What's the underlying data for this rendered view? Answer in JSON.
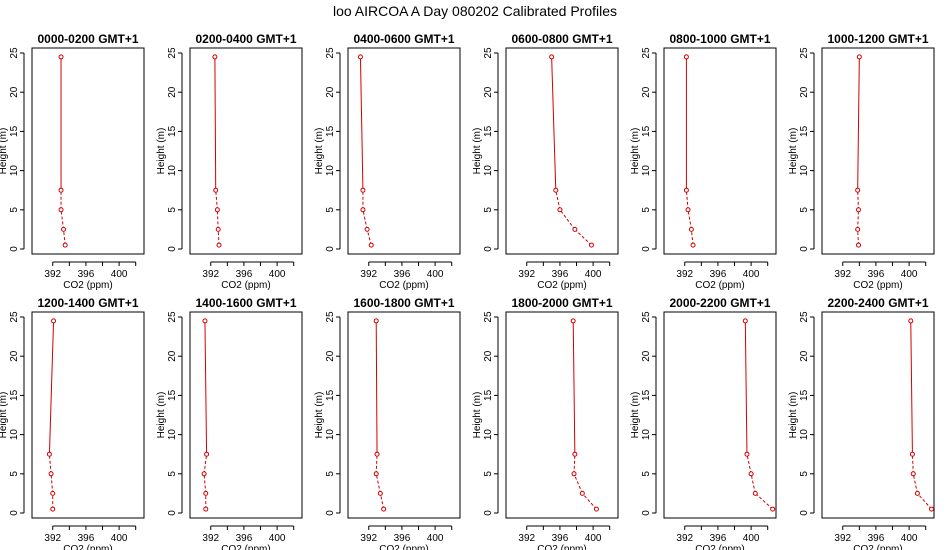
{
  "title": "loo AIRCOA A  Day 080202  Calibrated Profiles",
  "colors": {
    "series": "#d40000",
    "axis": "#000000",
    "background": "#ffffff"
  },
  "chart_data": {
    "type": "line",
    "xlabel": "CO2 (ppm)",
    "ylabel": "Height (m)",
    "xlim": [
      389.5,
      403
    ],
    "ylim": [
      0,
      25
    ],
    "xticks": [
      392,
      396,
      400
    ],
    "yticks": [
      0,
      5,
      10,
      15,
      20,
      25
    ],
    "heights": [
      0.5,
      2.5,
      5,
      7.5,
      24.5
    ],
    "panels": [
      {
        "title": "0000-0200 GMT+1",
        "co2": [
          393.5,
          393.3,
          393.0,
          393.0,
          393.0
        ]
      },
      {
        "title": "0200-0400 GMT+1",
        "co2": [
          393.0,
          392.9,
          392.8,
          392.6,
          392.5
        ]
      },
      {
        "title": "0400-0600 GMT+1",
        "co2": [
          392.3,
          391.8,
          391.3,
          391.3,
          391.0
        ]
      },
      {
        "title": "0600-0800 GMT+1",
        "co2": [
          399.8,
          397.8,
          396.0,
          395.5,
          395.0
        ]
      },
      {
        "title": "0800-1000 GMT+1",
        "co2": [
          393.0,
          392.8,
          392.4,
          392.2,
          392.2
        ]
      },
      {
        "title": "1000-1200 GMT+1",
        "co2": [
          393.9,
          393.8,
          393.9,
          393.8,
          394.0
        ]
      },
      {
        "title": "1200-1400 GMT+1",
        "co2": [
          392.0,
          392.0,
          391.8,
          391.6,
          392.1
        ]
      },
      {
        "title": "1400-1600 GMT+1",
        "co2": [
          391.4,
          391.4,
          391.2,
          391.5,
          391.3
        ]
      },
      {
        "title": "1600-1800 GMT+1",
        "co2": [
          393.8,
          393.4,
          392.9,
          393.0,
          392.9
        ]
      },
      {
        "title": "1800-2000 GMT+1",
        "co2": [
          400.4,
          398.7,
          397.7,
          397.8,
          397.6
        ]
      },
      {
        "title": "2000-2200 GMT+1",
        "co2": [
          402.6,
          400.5,
          400.0,
          399.5,
          399.3
        ]
      },
      {
        "title": "2200-2400 GMT+1",
        "co2": [
          402.7,
          401.0,
          400.5,
          400.4,
          400.2
        ]
      }
    ]
  }
}
